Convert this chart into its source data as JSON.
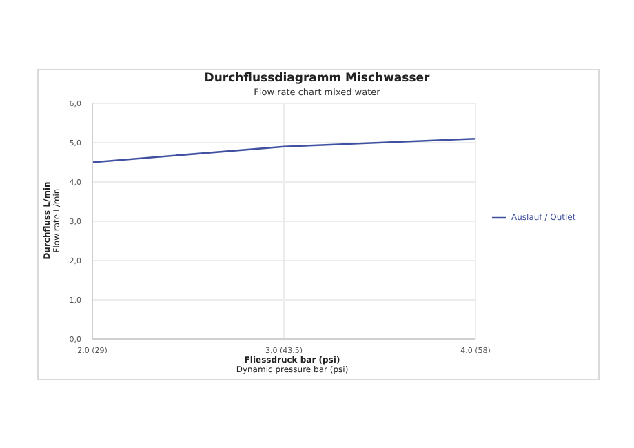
{
  "chart_data": {
    "type": "line",
    "title": "Durchflussdiagramm Mischwasser",
    "subtitle": "Flow rate chart mixed water",
    "xlabel": "Fliessdruck bar (psi)\nDynamic pressure bar (psi)",
    "ylabel": "Durchfluss L/min\nFlow rate L/min",
    "categories": [
      "2.0 (29)",
      "3.0 (43.5)",
      "4.0 (58)"
    ],
    "series": [
      {
        "name": "Auslauf / Outlet",
        "color": "#3f51a0",
        "values": [
          4.5,
          4.9,
          5.1
        ]
      }
    ],
    "ylim": [
      0,
      6
    ],
    "yticks": [
      {
        "value": 0,
        "label": "0,0"
      },
      {
        "value": 1,
        "label": "1,0"
      },
      {
        "value": 2,
        "label": "2,0"
      },
      {
        "value": 3,
        "label": "3,0"
      },
      {
        "value": 4,
        "label": "4,0"
      },
      {
        "value": 5,
        "label": "5,0"
      },
      {
        "value": 6,
        "label": "6,0"
      }
    ],
    "grid": true,
    "legend": "right",
    "marker": "none",
    "line_style": "solid"
  }
}
